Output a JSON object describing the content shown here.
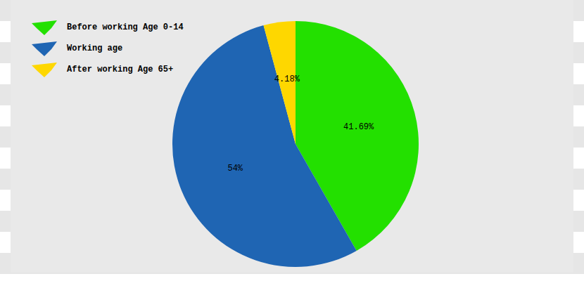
{
  "chart_data": {
    "type": "pie",
    "categories": [
      "Before working Age 0-14",
      "Working age",
      "After working Age 65+"
    ],
    "values": [
      41.69,
      54,
      4.18
    ],
    "value_labels": [
      "41.69%",
      "54%",
      "4.18%"
    ],
    "colors": [
      "#23e000",
      "#1f65b3",
      "#fed700"
    ],
    "data_labels": true,
    "legend": "upper left"
  }
}
